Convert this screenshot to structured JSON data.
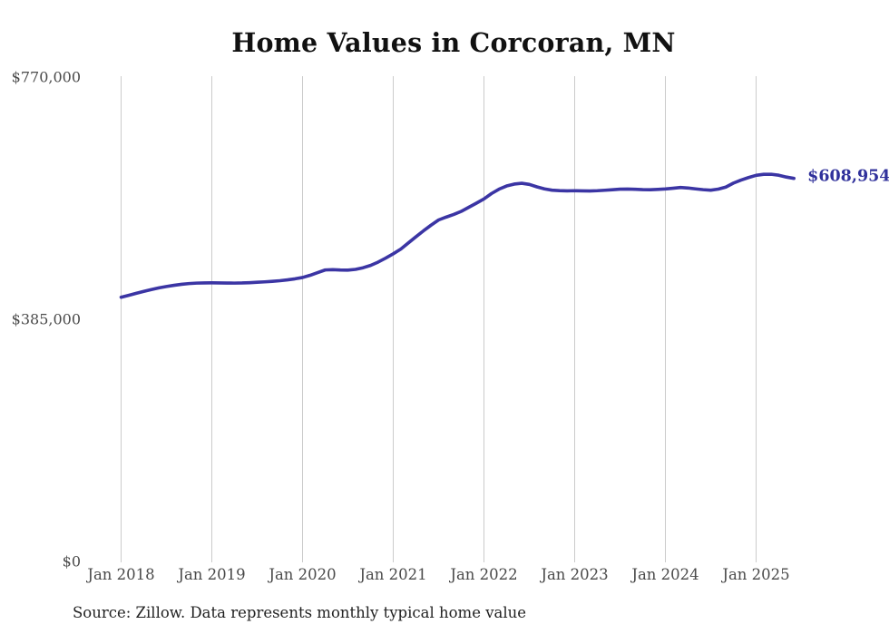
{
  "chart_data": {
    "type": "line",
    "title": "Home Values in Corcoran, MN",
    "source": "Source: Zillow. Data represents monthly typical home value",
    "end_label": "$608,954",
    "final_value": 608954,
    "xlabel": "",
    "ylabel": "",
    "ylim": [
      0,
      770000
    ],
    "grid": "vertical-only",
    "legend_position": "none",
    "x_tick_labels": [
      "Jan 2018",
      "Jan 2019",
      "Jan 2020",
      "Jan 2021",
      "Jan 2022",
      "Jan 2023",
      "Jan 2024",
      "Jan 2025"
    ],
    "y_ticks": [
      0,
      385000,
      770000
    ],
    "y_tick_labels": [
      "$0",
      "$385,000",
      "$770,000"
    ],
    "series": [
      {
        "name": "Monthly typical home value",
        "months": [
          "2018-01",
          "2018-02",
          "2018-03",
          "2018-04",
          "2018-05",
          "2018-06",
          "2018-07",
          "2018-08",
          "2018-09",
          "2018-10",
          "2018-11",
          "2018-12",
          "2019-01",
          "2019-02",
          "2019-03",
          "2019-04",
          "2019-05",
          "2019-06",
          "2019-07",
          "2019-08",
          "2019-09",
          "2019-10",
          "2019-11",
          "2019-12",
          "2020-01",
          "2020-02",
          "2020-03",
          "2020-04",
          "2020-05",
          "2020-06",
          "2020-07",
          "2020-08",
          "2020-09",
          "2020-10",
          "2020-11",
          "2020-12",
          "2021-01",
          "2021-02",
          "2021-03",
          "2021-04",
          "2021-05",
          "2021-06",
          "2021-07",
          "2021-08",
          "2021-09",
          "2021-10",
          "2021-11",
          "2021-12",
          "2022-01",
          "2022-02",
          "2022-03",
          "2022-04",
          "2022-05",
          "2022-06",
          "2022-07",
          "2022-08",
          "2022-09",
          "2022-10",
          "2022-11",
          "2022-12",
          "2023-01",
          "2023-02",
          "2023-03",
          "2023-04",
          "2023-05",
          "2023-06",
          "2023-07",
          "2023-08",
          "2023-09",
          "2023-10",
          "2023-11",
          "2023-12",
          "2024-01",
          "2024-02",
          "2024-03",
          "2024-04",
          "2024-05",
          "2024-06",
          "2024-07",
          "2024-08",
          "2024-09",
          "2024-10",
          "2024-11",
          "2024-12",
          "2025-01",
          "2025-02",
          "2025-03",
          "2025-04",
          "2025-05",
          "2025-06"
        ],
        "values": [
          420000,
          423100,
          426300,
          429400,
          432300,
          434900,
          437100,
          439000,
          440600,
          441800,
          442500,
          442800,
          442900,
          442800,
          442600,
          442500,
          442700,
          443200,
          443800,
          444500,
          445300,
          446300,
          447600,
          449300,
          451400,
          454900,
          459200,
          463400,
          463900,
          463300,
          463100,
          464300,
          466900,
          470600,
          475900,
          482200,
          489100,
          496600,
          506400,
          516100,
          525600,
          534600,
          542900,
          547400,
          551600,
          556600,
          563100,
          569600,
          576300,
          584900,
          591900,
          596900,
          599900,
          601200,
          599400,
          595500,
          592300,
          590200,
          589500,
          589100,
          589400,
          589100,
          589000,
          589400,
          590100,
          590900,
          591800,
          592000,
          591600,
          591100,
          591000,
          591500,
          592200,
          593300,
          594500,
          593700,
          592300,
          591000,
          590200,
          591900,
          595200,
          601500,
          606300,
          610300,
          613800,
          615400,
          615500,
          614000,
          611100,
          608954
        ]
      }
    ],
    "colors": {
      "line": "#3b35a4",
      "end_label": "#30319b",
      "grid": "#cbcbcb",
      "tick_text": "#4a4a4a",
      "title_text": "#111111",
      "source_text": "#222222",
      "background": "#ffffff"
    }
  }
}
